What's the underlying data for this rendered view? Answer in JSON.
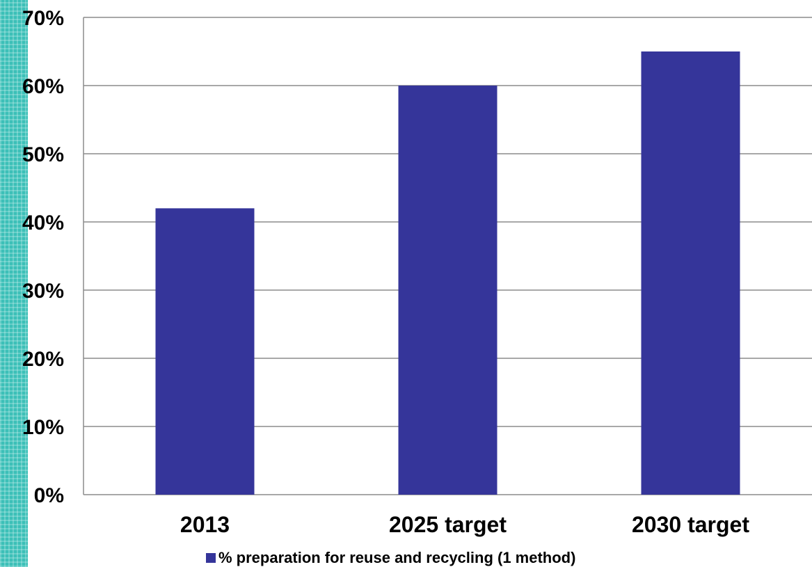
{
  "chart_data": {
    "type": "bar",
    "categories": [
      "2013",
      "2025 target",
      "2030 target"
    ],
    "series": [
      {
        "name": "% preparation for reuse and recycling (1 method)",
        "values": [
          42,
          60,
          65
        ],
        "color": "#35359a"
      }
    ],
    "ylim": [
      0,
      70
    ],
    "yticks": [
      0,
      10,
      20,
      30,
      40,
      50,
      60,
      70
    ],
    "ytick_labels": [
      "0%",
      "10%",
      "20%",
      "30%",
      "40%",
      "50%",
      "60%",
      "70%"
    ],
    "grid": true,
    "legend": "bottom"
  },
  "colors": {
    "bar": "#35359a",
    "gridline": "#8c8c8c",
    "side_strip": "#3cc0b8"
  }
}
